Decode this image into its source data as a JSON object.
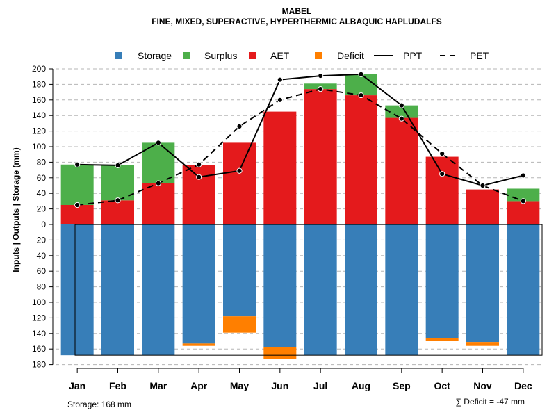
{
  "chart_data": {
    "type": "bar",
    "title": "MABEL",
    "subtitle": "FINE, MIXED, SUPERACTIVE, HYPERTHERMIC ALBAQUIC HAPLUDALFS",
    "ylabel": "Inputs | Outputs | Storage    (mm)",
    "ylim": [
      -180,
      200
    ],
    "y_ticks": [
      200,
      180,
      160,
      140,
      120,
      100,
      80,
      60,
      40,
      20,
      0,
      -20,
      -40,
      -60,
      -80,
      -100,
      -120,
      -140,
      -160,
      -180
    ],
    "y_tick_labels": [
      "200",
      "180",
      "160",
      "140",
      "120",
      "100",
      "80",
      "60",
      "40",
      "20",
      "0",
      "20",
      "40",
      "60",
      "80",
      "100",
      "120",
      "140",
      "160",
      "180"
    ],
    "categories": [
      "Jan",
      "Feb",
      "Mar",
      "Apr",
      "May",
      "Jun",
      "Jul",
      "Aug",
      "Sep",
      "Oct",
      "Nov",
      "Dec"
    ],
    "storage_capacity": 168,
    "series": [
      {
        "name": "Storage",
        "color": "#377EB8",
        "values": [
          168,
          168,
          168,
          153,
          118,
          158,
          168,
          168,
          168,
          146,
          151,
          168
        ]
      },
      {
        "name": "Surplus",
        "color": "#4DAF4A",
        "values": [
          52,
          45,
          52,
          0,
          0,
          0,
          7,
          27,
          16,
          0,
          0,
          16
        ]
      },
      {
        "name": "AET",
        "color": "#E41A1C",
        "values": [
          25,
          31,
          53,
          76,
          105,
          145,
          174,
          166,
          137,
          87,
          45,
          30
        ]
      },
      {
        "name": "Deficit",
        "color": "#FF7F00",
        "values": [
          0,
          0,
          0,
          -3,
          -21,
          -15,
          0,
          0,
          0,
          -4,
          -5,
          0
        ]
      },
      {
        "name": "PPT",
        "color": "#000000",
        "style": "solid",
        "values": [
          77,
          76,
          105,
          61,
          69,
          186,
          191,
          193,
          153,
          65,
          50,
          63
        ]
      },
      {
        "name": "PET",
        "color": "#000000",
        "style": "dashed",
        "values": [
          25,
          31,
          53,
          77,
          126,
          160,
          174,
          166,
          136,
          91,
          50,
          30
        ]
      }
    ],
    "legend": [
      "Storage",
      "Surplus",
      "AET",
      "Deficit",
      "PPT",
      "PET"
    ],
    "legend_position": "top",
    "grid": true,
    "storage_label": "Storage: 168 mm",
    "deficit_label": "∑ Deficit = -47 mm"
  }
}
